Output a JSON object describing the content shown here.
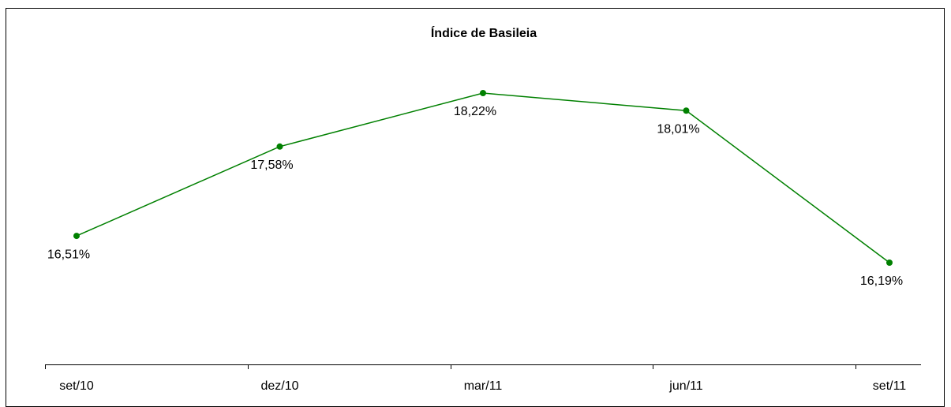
{
  "chart_data": {
    "type": "line",
    "title": "Índice de Basileia",
    "categories": [
      "set/10",
      "dez/10",
      "mar/11",
      "jun/11",
      "set/11"
    ],
    "series": [
      {
        "color": "#008000",
        "values": [
          16.51,
          17.58,
          18.22,
          18.01,
          16.19
        ],
        "value_labels": [
          "16,51%",
          "17,58%",
          "18,22%",
          "18,01%",
          "16,19%"
        ]
      }
    ]
  }
}
